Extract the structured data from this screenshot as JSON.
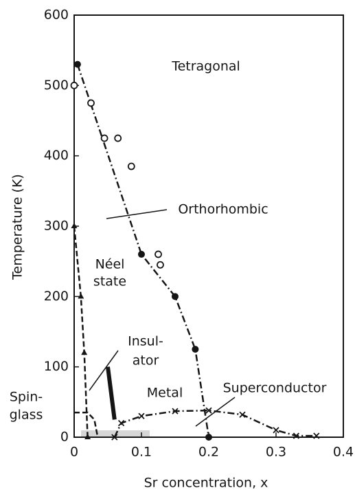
{
  "chart_data": {
    "type": "scatter",
    "xlabel": "Sr concentration, x",
    "ylabel": "Temperature (K)",
    "xlim": [
      0,
      0.4
    ],
    "xticks": [
      0,
      0.1,
      0.2,
      0.3,
      0.4
    ],
    "ylim": [
      0,
      600
    ],
    "yticks": [
      0,
      100,
      200,
      300,
      400,
      500,
      600
    ],
    "color": "#151515",
    "annotations": [
      "Tetragonal",
      "Orthorhombic",
      "Néel",
      "state",
      "Insul-",
      "ator",
      "Metal",
      "Superconductor",
      "Spin-",
      "glass"
    ],
    "series": [
      {
        "x": [
          0.005,
          0.1,
          0.15,
          0.18,
          0.2
        ],
        "values": [
          530,
          260,
          200,
          125,
          0
        ],
        "marker": "filled",
        "line": "dashdot"
      },
      {
        "x": [
          0,
          0.025,
          0.045,
          0.065,
          0.085,
          0.125,
          0.128
        ],
        "values": [
          500,
          475,
          425,
          425,
          385,
          260,
          245
        ],
        "marker": "open",
        "line": "none"
      },
      {
        "x": [
          0,
          0.01,
          0.015,
          0.02
        ],
        "values": [
          300,
          200,
          120,
          0
        ],
        "marker": "triangle",
        "line": "dash"
      },
      {
        "x": [
          0,
          0.02,
          0.03,
          0.035
        ],
        "values": [
          35,
          35,
          25,
          0
        ],
        "marker": "none",
        "line": "dash"
      },
      {
        "x": [
          0.06,
          0.07,
          0.1,
          0.15,
          0.2,
          0.25,
          0.3,
          0.33,
          0.36
        ],
        "values": [
          0,
          20,
          30,
          37,
          38,
          32,
          10,
          2,
          2
        ],
        "marker": "cross",
        "line": "dashdot"
      },
      {
        "x": [
          0.05,
          0.06
        ],
        "values": [
          100,
          25
        ],
        "marker": "none",
        "line": "thick"
      }
    ]
  }
}
